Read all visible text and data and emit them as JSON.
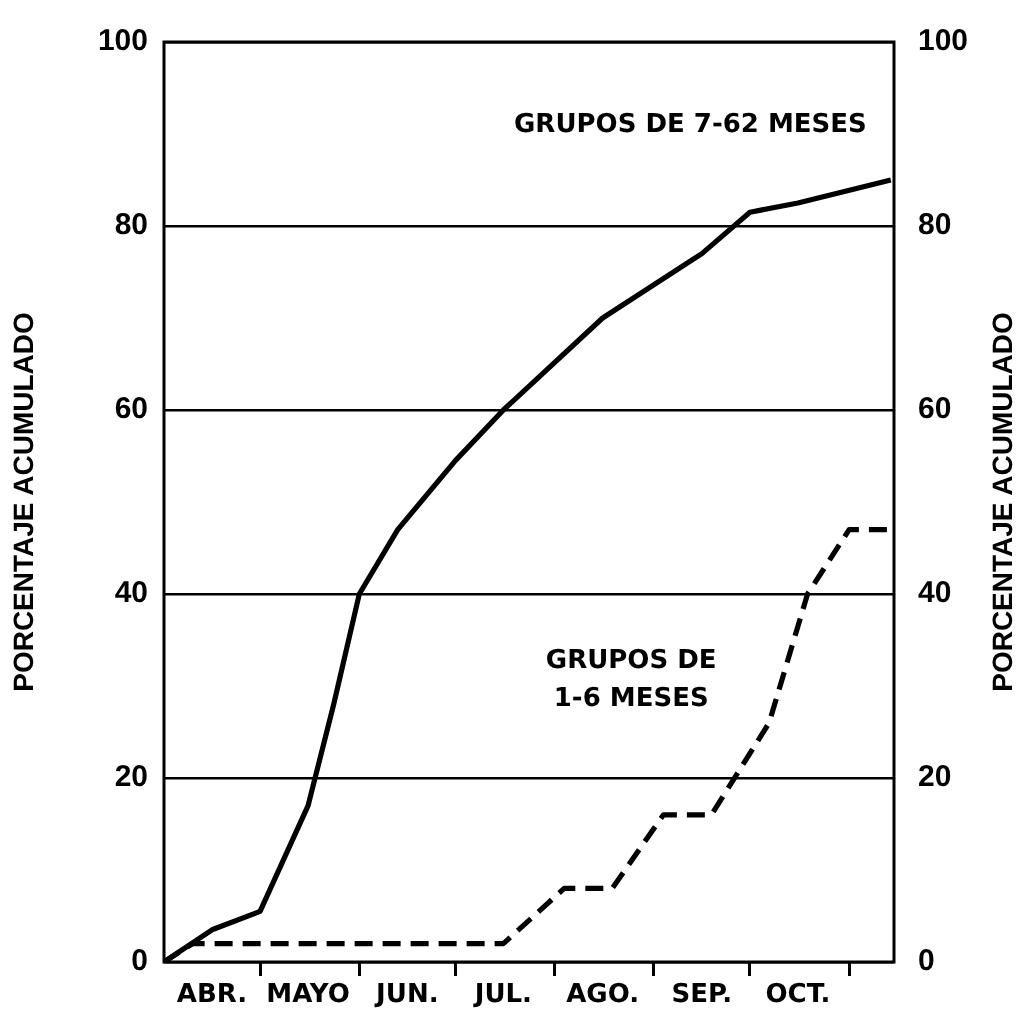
{
  "chart_data": {
    "type": "line",
    "ylabel": "PORCENTAJE ACUMULADO",
    "y2label": "PORCENTAJE ACUMULADO",
    "xlim": [
      "--04-01",
      "--11-15"
    ],
    "xticks": [
      {
        "value": "--04-16",
        "label": "ABR."
      },
      {
        "value": "--05-01",
        "label": null
      },
      {
        "value": "--05-16",
        "label": "MAYO"
      },
      {
        "value": "--06-01",
        "label": null
      },
      {
        "value": "--06-16",
        "label": "JUN."
      },
      {
        "value": "--07-01",
        "label": null
      },
      {
        "value": "--07-16",
        "label": "JUL."
      },
      {
        "value": "--08-01",
        "label": null
      },
      {
        "value": "--08-16",
        "label": "AGO."
      },
      {
        "value": "--09-01",
        "label": null
      },
      {
        "value": "--09-16",
        "label": "SEP."
      },
      {
        "value": "--10-01",
        "label": null
      },
      {
        "value": "--10-16",
        "label": "OCT."
      },
      {
        "value": "--11-01",
        "label": null
      }
    ],
    "ylim": [
      0,
      100
    ],
    "yticks": [
      0,
      20,
      40,
      60,
      80,
      100
    ],
    "y2lim": [
      0,
      100
    ],
    "y2ticks": [
      0,
      20,
      40,
      60,
      80,
      100
    ],
    "grid": "y",
    "legend": false,
    "marker": "none",
    "series": [
      {
        "name": "GRUPOS DE 7-62 MESES",
        "color": "#000000",
        "line_style": "solid",
        "x": [
          "--04-01",
          "--04-16",
          "--05-01",
          "--05-16",
          "--05-24",
          "--06-01",
          "--06-13",
          "--07-01",
          "--07-16",
          "--08-16",
          "--09-16",
          "--10-01",
          "--10-16",
          "--11-14"
        ],
        "values": [
          0,
          3.5,
          5.5,
          17,
          28,
          40,
          47,
          54.5,
          60,
          70,
          77,
          81.5,
          82.5,
          85
        ]
      },
      {
        "name": "GRUPOS DE 1-6 MESES",
        "color": "#000000",
        "line_style": "dashed",
        "x": [
          "--04-01",
          "--04-10",
          "--05-25",
          "--07-16",
          "--08-04",
          "--08-19",
          "--09-04",
          "--09-19",
          "--10-07",
          "--10-19",
          "--11-01",
          "--11-15"
        ],
        "values": [
          0,
          2,
          2,
          2,
          8,
          8,
          16,
          16,
          26,
          40,
          47,
          47
        ]
      }
    ]
  }
}
